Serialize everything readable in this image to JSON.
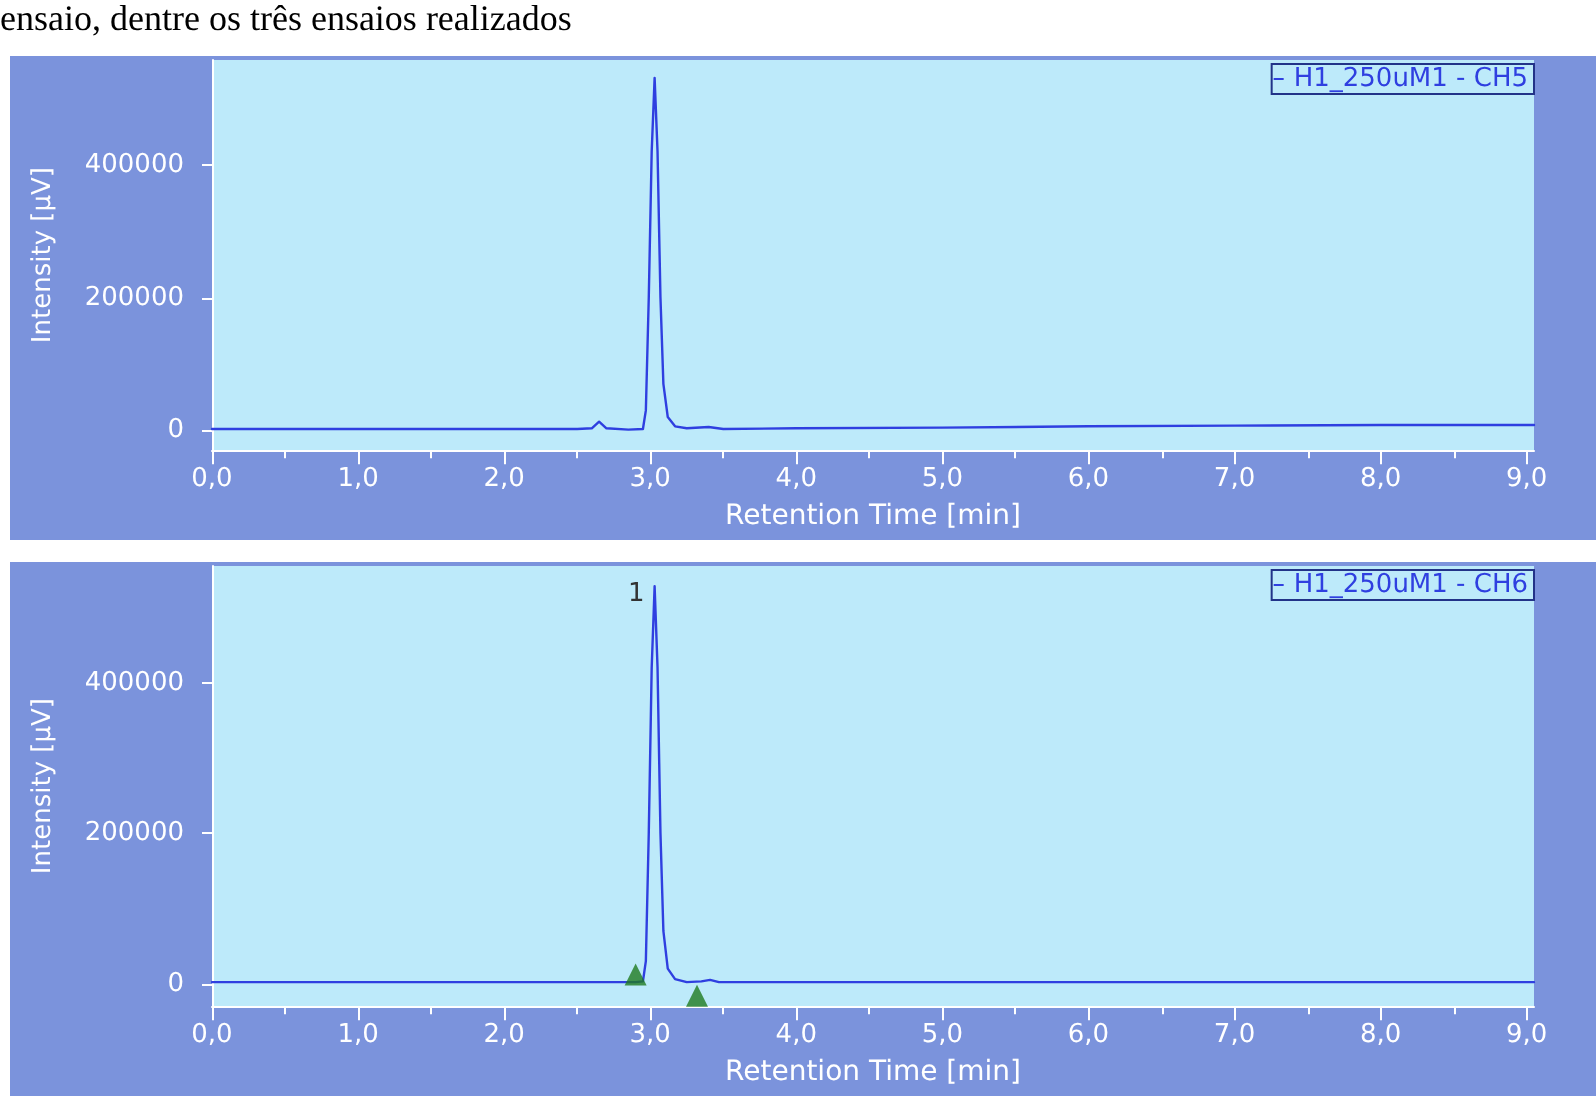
{
  "chart_data": [
    {
      "type": "line",
      "xlabel": "Retention Time [min]",
      "ylabel": "Intensity [µV]",
      "annotations": [
        "ensaio, dentre os três ensaios realizados"
      ],
      "xlim": [
        0,
        9.05
      ],
      "ylim": [
        -30000,
        558000
      ],
      "xticks": [
        {
          "value": 0,
          "label": "0,0"
        },
        {
          "value": 1,
          "label": "1,0"
        },
        {
          "value": 2,
          "label": "2,0"
        },
        {
          "value": 3,
          "label": "3,0"
        },
        {
          "value": 4,
          "label": "4,0"
        },
        {
          "value": 5,
          "label": "5,0"
        },
        {
          "value": 6,
          "label": "6,0"
        },
        {
          "value": 7,
          "label": "7,0"
        },
        {
          "value": 8,
          "label": "8,0"
        },
        {
          "value": 9,
          "label": "9,0"
        }
      ],
      "yticks": [
        0,
        200000,
        400000
      ],
      "grid": false,
      "legend": "top right",
      "marker": "none",
      "line_style": "solid",
      "series": [
        {
          "name": "H1_250uM1 - CH5",
          "color": "#2f3fe0",
          "x": [
            0,
            1,
            2,
            2.5,
            2.6,
            2.65,
            2.7,
            2.85,
            2.95,
            2.97,
            2.99,
            3.01,
            3.03,
            3.05,
            3.07,
            3.09,
            3.12,
            3.17,
            3.25,
            3.4,
            3.5,
            4,
            5,
            6,
            7,
            8,
            9.05
          ],
          "values": [
            2000,
            2000,
            2000,
            2000,
            3000,
            13000,
            3000,
            1000,
            2000,
            30000,
            200000,
            420000,
            531000,
            420000,
            200000,
            70000,
            20000,
            6000,
            3000,
            5000,
            2000,
            3000,
            4000,
            6000,
            7000,
            8000,
            8000
          ]
        }
      ]
    },
    {
      "type": "line",
      "xlabel": "Retention Time [min]",
      "ylabel": "Intensity [µV]",
      "annotations": [
        {
          "text": "1",
          "x": 3.03,
          "y": 528000
        }
      ],
      "xlim": [
        0,
        9.05
      ],
      "ylim": [
        -30000,
        555000
      ],
      "xticks": [
        {
          "value": 0,
          "label": "0,0"
        },
        {
          "value": 1,
          "label": "1,0"
        },
        {
          "value": 2,
          "label": "2,0"
        },
        {
          "value": 3,
          "label": "3,0"
        },
        {
          "value": 4,
          "label": "4,0"
        },
        {
          "value": 5,
          "label": "5,0"
        },
        {
          "value": 6,
          "label": "6,0"
        },
        {
          "value": 7,
          "label": "7,0"
        },
        {
          "value": 8,
          "label": "8,0"
        },
        {
          "value": 9,
          "label": "9,0"
        }
      ],
      "yticks": [
        0,
        200000,
        400000
      ],
      "grid": false,
      "legend": "top right",
      "marker": "none",
      "line_style": "solid",
      "series": [
        {
          "name": "H1_250uM1 - CH6",
          "color": "#2f3fe0",
          "x": [
            0,
            1,
            2,
            2.8,
            2.9,
            2.95,
            2.97,
            2.99,
            3.01,
            3.03,
            3.05,
            3.07,
            3.09,
            3.12,
            3.17,
            3.25,
            3.35,
            3.41,
            3.47,
            3.6,
            5,
            7,
            9.05
          ],
          "values": [
            2000,
            2000,
            2000,
            2000,
            2000,
            3000,
            30000,
            200000,
            420000,
            528000,
            420000,
            200000,
            70000,
            20000,
            6000,
            2000,
            3000,
            5000,
            2000,
            2000,
            2000,
            2000,
            2000
          ]
        },
        {
          "type": "scatter",
          "color": "#1f7a1f",
          "marker": "triangle",
          "x": [
            2.9,
            3.32
          ],
          "values": [
            12000,
            -16000
          ]
        }
      ]
    }
  ]
}
